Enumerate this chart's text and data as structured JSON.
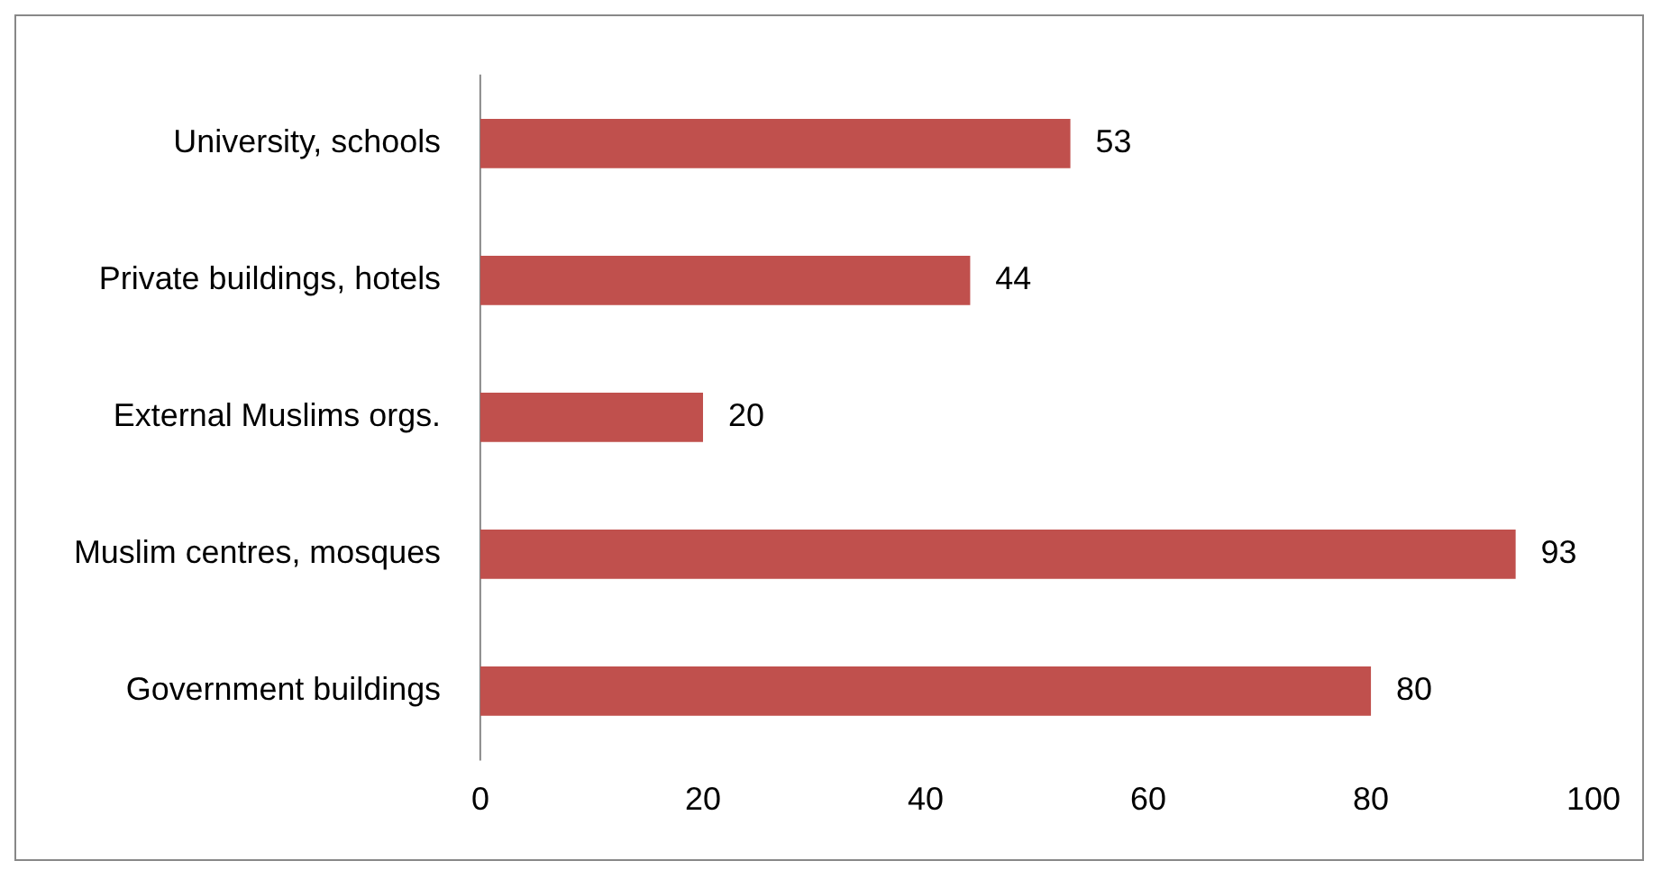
{
  "chart_data": {
    "type": "bar",
    "orientation": "horizontal",
    "categories": [
      "University, schools",
      "Private buildings, hotels",
      "External Muslims orgs.",
      "Muslim centres, mosques",
      "Government buildings"
    ],
    "values": [
      53,
      44,
      20,
      93,
      80
    ],
    "color": "#c0504d",
    "xlim": [
      0,
      100
    ],
    "xticks": [
      0,
      20,
      40,
      60,
      80,
      100
    ],
    "data_labels": true,
    "grid": false,
    "legend": false
  }
}
